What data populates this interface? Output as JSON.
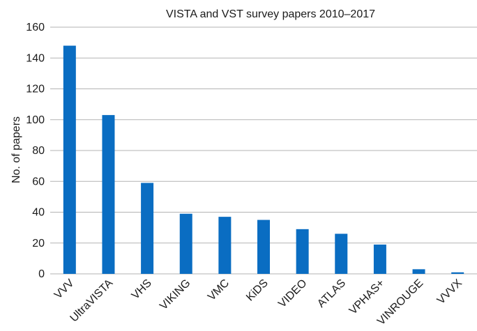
{
  "chart_data": {
    "type": "bar",
    "title": "VISTA and VST survey papers 2010–2017",
    "xlabel": "",
    "ylabel": "No. of papers",
    "categories": [
      "VVV",
      "UltraVISTA",
      "VHS",
      "VIKING",
      "VMC",
      "KiDS",
      "VIDEO",
      "ATLAS",
      "VPHAS+",
      "VINROUGE",
      "VVVX"
    ],
    "values": [
      148,
      103,
      59,
      39,
      37,
      35,
      29,
      26,
      19,
      3,
      1
    ],
    "ylim": [
      0,
      160
    ],
    "yticks": [
      0,
      20,
      40,
      60,
      80,
      100,
      120,
      140,
      160
    ],
    "grid": true,
    "legend": "none",
    "bar_color": "#0a6dc2",
    "grid_color": "#b3b3b3"
  }
}
